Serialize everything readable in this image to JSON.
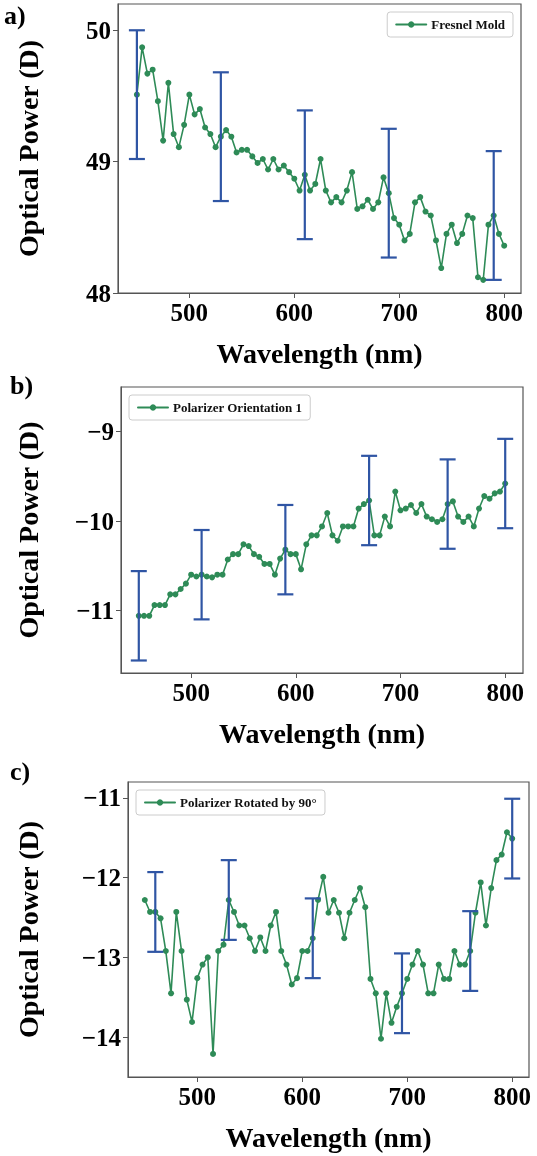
{
  "chart_data": [
    {
      "type": "line",
      "annotations": [
        "a)"
      ],
      "xlabel": "Wavelength (nm)",
      "ylabel": "Optical Power (D)",
      "x": [
        450,
        455,
        460,
        465,
        470,
        475,
        480,
        485,
        490,
        495,
        500,
        505,
        510,
        515,
        520,
        525,
        530,
        535,
        540,
        545,
        550,
        555,
        560,
        565,
        570,
        575,
        580,
        585,
        590,
        595,
        600,
        605,
        610,
        615,
        620,
        625,
        630,
        635,
        640,
        645,
        650,
        655,
        660,
        665,
        670,
        675,
        680,
        685,
        690,
        695,
        700,
        705,
        710,
        715,
        720,
        725,
        730,
        735,
        740,
        745,
        750,
        755,
        760,
        765,
        770,
        775,
        780,
        785,
        790,
        795,
        800
      ],
      "series": [
        {
          "name": "Fresnel Mold",
          "color": "#2e8b57",
          "values": [
            49.51,
            49.87,
            49.67,
            49.7,
            49.46,
            49.16,
            49.6,
            49.21,
            49.11,
            49.28,
            49.51,
            49.36,
            49.4,
            49.26,
            49.21,
            49.11,
            49.19,
            49.24,
            49.19,
            49.07,
            49.09,
            49.09,
            49.04,
            48.99,
            49.02,
            48.94,
            49.02,
            48.94,
            48.97,
            48.92,
            48.87,
            48.78,
            48.9,
            48.78,
            48.83,
            49.02,
            48.78,
            48.69,
            48.73,
            48.69,
            48.78,
            48.92,
            48.64,
            48.66,
            48.71,
            48.64,
            48.69,
            48.88,
            48.76,
            48.57,
            48.52,
            48.4,
            48.45,
            48.69,
            48.73,
            48.62,
            48.59,
            48.4,
            48.19,
            48.45,
            48.52,
            48.38,
            48.45,
            48.59,
            48.57,
            48.12,
            48.1,
            48.52,
            48.59,
            48.45,
            48.36
          ],
          "errors": [
            0.49,
            null,
            null,
            null,
            null,
            null,
            null,
            null,
            null,
            null,
            null,
            null,
            null,
            null,
            null,
            null,
            0.49,
            null,
            null,
            null,
            null,
            null,
            null,
            null,
            null,
            null,
            null,
            null,
            null,
            null,
            null,
            null,
            0.49,
            null,
            null,
            null,
            null,
            null,
            null,
            null,
            null,
            null,
            null,
            null,
            null,
            null,
            null,
            null,
            0.49,
            null,
            null,
            null,
            null,
            null,
            null,
            null,
            null,
            null,
            null,
            null,
            null,
            null,
            null,
            null,
            null,
            null,
            null,
            null,
            0.49,
            null,
            null
          ]
        }
      ],
      "xlim": [
        432,
        816
      ],
      "xticks": [
        500,
        600,
        700,
        800
      ],
      "ylim": [
        48,
        50.2
      ],
      "yticks": [
        48,
        49,
        50
      ],
      "grid": false,
      "legend": "top right",
      "marker": "circle",
      "line_style": "solid"
    },
    {
      "type": "line",
      "annotations": [
        "b)"
      ],
      "xlabel": "Wavelength (nm)",
      "ylabel": "Optical Power (D)",
      "x": [
        450,
        455,
        460,
        465,
        470,
        475,
        480,
        485,
        490,
        495,
        500,
        505,
        510,
        515,
        520,
        525,
        530,
        535,
        540,
        545,
        550,
        555,
        560,
        565,
        570,
        575,
        580,
        585,
        590,
        595,
        600,
        605,
        610,
        615,
        620,
        625,
        630,
        635,
        640,
        645,
        650,
        655,
        660,
        665,
        670,
        675,
        680,
        685,
        690,
        695,
        700,
        705,
        710,
        715,
        720,
        725,
        730,
        735,
        740,
        745,
        750,
        755,
        760,
        765,
        770,
        775,
        780,
        785,
        790,
        795,
        800
      ],
      "series": [
        {
          "name": "Polarizer Orientation 1",
          "color": "#2e8b57",
          "values": [
            -11.06,
            -11.06,
            -11.06,
            -10.94,
            -10.94,
            -10.94,
            -10.82,
            -10.82,
            -10.76,
            -10.7,
            -10.6,
            -10.62,
            -10.6,
            -10.62,
            -10.63,
            -10.6,
            -10.6,
            -10.43,
            -10.37,
            -10.37,
            -10.26,
            -10.28,
            -10.37,
            -10.4,
            -10.48,
            -10.48,
            -10.6,
            -10.42,
            -10.32,
            -10.37,
            -10.37,
            -10.54,
            -10.26,
            -10.16,
            -10.16,
            -10.06,
            -9.91,
            -10.16,
            -10.22,
            -10.06,
            -10.06,
            -10.06,
            -9.86,
            -9.81,
            -9.77,
            -10.16,
            -10.16,
            -9.95,
            -10.06,
            -9.67,
            -9.88,
            -9.86,
            -9.82,
            -9.91,
            -9.81,
            -9.95,
            -9.98,
            -10.01,
            -9.98,
            -9.81,
            -9.78,
            -9.95,
            -10.01,
            -9.95,
            -10.06,
            -9.86,
            -9.72,
            -9.75,
            -9.69,
            -9.67,
            -9.58
          ],
          "errors": [
            0.5,
            null,
            null,
            null,
            null,
            null,
            null,
            null,
            null,
            null,
            null,
            null,
            0.5,
            null,
            null,
            null,
            null,
            null,
            null,
            null,
            null,
            null,
            null,
            null,
            null,
            null,
            null,
            null,
            0.5,
            null,
            null,
            null,
            null,
            null,
            null,
            null,
            null,
            null,
            null,
            null,
            null,
            null,
            null,
            null,
            0.5,
            null,
            null,
            null,
            null,
            null,
            null,
            null,
            null,
            null,
            null,
            null,
            null,
            null,
            null,
            0.5,
            null,
            null,
            null,
            null,
            null,
            null,
            null,
            null,
            null,
            null,
            0.5
          ]
        }
      ],
      "xlim": [
        433,
        817
      ],
      "xticks": [
        500,
        600,
        700,
        800
      ],
      "ylim": [
        -11.7,
        -8.5
      ],
      "yticks": [
        -11,
        -10,
        -9
      ],
      "grid": false,
      "legend": "top left",
      "marker": "circle",
      "line_style": "solid"
    },
    {
      "type": "line",
      "annotations": [
        "c)"
      ],
      "xlabel": "Wavelength (nm)",
      "ylabel": "Optical Power (D)",
      "x": [
        450,
        455,
        460,
        465,
        470,
        475,
        480,
        485,
        490,
        495,
        500,
        505,
        510,
        515,
        520,
        525,
        530,
        535,
        540,
        545,
        550,
        555,
        560,
        565,
        570,
        575,
        580,
        585,
        590,
        595,
        600,
        605,
        610,
        615,
        620,
        625,
        630,
        635,
        640,
        645,
        650,
        655,
        660,
        665,
        670,
        675,
        680,
        685,
        690,
        695,
        700,
        705,
        710,
        715,
        720,
        725,
        730,
        735,
        740,
        745,
        750,
        755,
        760,
        765,
        770,
        775,
        780,
        785,
        790,
        795,
        800
      ],
      "series": [
        {
          "name": "Polarizer Rotated by 90°",
          "color": "#2e8b57",
          "values": [
            -12.28,
            -12.43,
            -12.43,
            -12.51,
            -12.92,
            -13.45,
            -12.43,
            -12.92,
            -13.53,
            -13.81,
            -13.26,
            -13.09,
            -13.0,
            -14.21,
            -12.92,
            -12.84,
            -12.28,
            -12.43,
            -12.6,
            -12.6,
            -12.76,
            -12.92,
            -12.75,
            -12.92,
            -12.6,
            -12.43,
            -12.92,
            -13.09,
            -13.34,
            -13.26,
            -12.92,
            -12.92,
            -12.76,
            -12.28,
            -11.99,
            -12.44,
            -12.28,
            -12.44,
            -12.76,
            -12.44,
            -12.28,
            -12.13,
            -12.37,
            -13.27,
            -13.45,
            -14.02,
            -13.45,
            -13.82,
            -13.62,
            -13.45,
            -13.27,
            -13.09,
            -12.92,
            -13.09,
            -13.45,
            -13.45,
            -13.09,
            -13.27,
            -13.27,
            -12.92,
            -13.09,
            -13.09,
            -12.92,
            -12.44,
            -12.06,
            -12.6,
            -12.13,
            -11.78,
            -11.71,
            -11.43,
            -11.51
          ],
          "errors": [
            null,
            null,
            0.5,
            null,
            null,
            null,
            null,
            null,
            null,
            null,
            null,
            null,
            null,
            null,
            null,
            null,
            0.5,
            null,
            null,
            null,
            null,
            null,
            null,
            null,
            null,
            null,
            null,
            null,
            null,
            null,
            null,
            null,
            0.5,
            null,
            null,
            null,
            null,
            null,
            null,
            null,
            null,
            null,
            null,
            null,
            null,
            null,
            null,
            null,
            null,
            0.5,
            null,
            null,
            null,
            null,
            null,
            null,
            null,
            null,
            null,
            null,
            null,
            null,
            0.5,
            null,
            null,
            null,
            null,
            null,
            null,
            null,
            0.5
          ]
        }
      ],
      "xlim": [
        434,
        816
      ],
      "xticks": [
        500,
        600,
        700,
        800
      ],
      "ylim": [
        -14.5,
        -10.8
      ],
      "yticks": [
        -14,
        -13,
        -12,
        -11
      ],
      "grid": false,
      "legend": "top left",
      "marker": "circle",
      "line_style": "solid"
    }
  ]
}
